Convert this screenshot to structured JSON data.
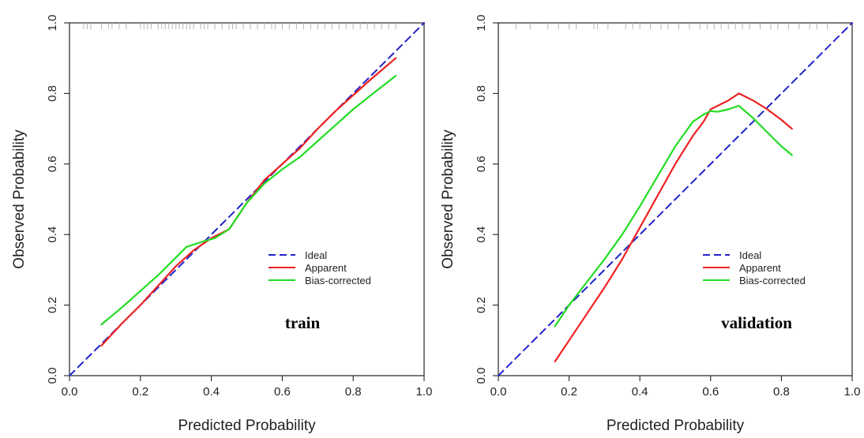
{
  "chart_data": [
    {
      "type": "line",
      "title": "",
      "xlabel": "Predicted Probability",
      "ylabel": "Observed  Probability",
      "xlim": [
        0,
        1
      ],
      "ylim": [
        0,
        1
      ],
      "xticks": [
        "0.0",
        "0.2",
        "0.4",
        "0.6",
        "0.8",
        "1.0"
      ],
      "yticks": [
        "0.0",
        "0.2",
        "0.4",
        "0.6",
        "0.8",
        "1.0"
      ],
      "annotation": "train",
      "legend_position": "bottom-right",
      "grid": false,
      "series": [
        {
          "name": "Ideal",
          "style": "dashed",
          "color": "#2222cc",
          "x": [
            0,
            1
          ],
          "y": [
            0,
            1
          ]
        },
        {
          "name": "Apparent",
          "style": "solid",
          "color": "#ee2222",
          "x": [
            0.09,
            0.15,
            0.2,
            0.25,
            0.3,
            0.35,
            0.4,
            0.45,
            0.5,
            0.55,
            0.6,
            0.65,
            0.7,
            0.75,
            0.8,
            0.85,
            0.92
          ],
          "y": [
            0.085,
            0.15,
            0.2,
            0.255,
            0.31,
            0.355,
            0.39,
            0.415,
            0.49,
            0.555,
            0.6,
            0.645,
            0.7,
            0.75,
            0.795,
            0.84,
            0.9
          ]
        },
        {
          "name": "Bias-corrected",
          "style": "solid",
          "color": "#22dd22",
          "x": [
            0.09,
            0.15,
            0.2,
            0.25,
            0.3,
            0.33,
            0.37,
            0.41,
            0.45,
            0.5,
            0.55,
            0.6,
            0.65,
            0.7,
            0.75,
            0.8,
            0.85,
            0.92
          ],
          "y": [
            0.145,
            0.195,
            0.24,
            0.285,
            0.335,
            0.365,
            0.378,
            0.39,
            0.415,
            0.49,
            0.545,
            0.585,
            0.62,
            0.665,
            0.71,
            0.755,
            0.795,
            0.85
          ]
        }
      ],
      "rug_x": [
        0.04,
        0.05,
        0.06,
        0.09,
        0.11,
        0.12,
        0.14,
        0.16,
        0.2,
        0.21,
        0.22,
        0.23,
        0.25,
        0.26,
        0.27,
        0.28,
        0.29,
        0.3,
        0.31,
        0.32,
        0.33,
        0.34,
        0.35,
        0.37,
        0.38,
        0.39,
        0.41,
        0.43,
        0.45,
        0.46,
        0.47,
        0.49,
        0.51,
        0.53,
        0.55,
        0.57,
        0.58,
        0.6,
        0.62,
        0.64,
        0.66,
        0.68,
        0.7,
        0.72,
        0.74,
        0.76,
        0.78,
        0.8,
        0.82,
        0.84,
        0.86,
        0.88,
        0.9,
        0.92
      ]
    },
    {
      "type": "line",
      "title": "",
      "xlabel": "Predicted Probability",
      "ylabel": "Observed  Probability",
      "xlim": [
        0,
        1
      ],
      "ylim": [
        0,
        1
      ],
      "xticks": [
        "0.0",
        "0.2",
        "0.4",
        "0.6",
        "0.8",
        "1.0"
      ],
      "yticks": [
        "0.0",
        "0.2",
        "0.4",
        "0.6",
        "0.8",
        "1.0"
      ],
      "annotation": "validation",
      "legend_position": "bottom-right",
      "grid": false,
      "series": [
        {
          "name": "Ideal",
          "style": "dashed",
          "color": "#2222cc",
          "x": [
            0,
            1
          ],
          "y": [
            0,
            1
          ]
        },
        {
          "name": "Apparent",
          "style": "solid",
          "color": "#ee2222",
          "x": [
            0.16,
            0.2,
            0.25,
            0.3,
            0.35,
            0.4,
            0.45,
            0.5,
            0.55,
            0.58,
            0.6,
            0.62,
            0.65,
            0.68,
            0.72,
            0.76,
            0.8,
            0.83
          ],
          "y": [
            0.04,
            0.1,
            0.175,
            0.25,
            0.33,
            0.42,
            0.51,
            0.6,
            0.68,
            0.72,
            0.755,
            0.765,
            0.78,
            0.8,
            0.78,
            0.755,
            0.725,
            0.7
          ]
        },
        {
          "name": "Bias-corrected",
          "style": "solid",
          "color": "#22dd22",
          "x": [
            0.16,
            0.2,
            0.25,
            0.3,
            0.35,
            0.4,
            0.45,
            0.5,
            0.55,
            0.58,
            0.6,
            0.62,
            0.65,
            0.68,
            0.72,
            0.76,
            0.8,
            0.83
          ],
          "y": [
            0.14,
            0.2,
            0.265,
            0.33,
            0.4,
            0.48,
            0.565,
            0.65,
            0.72,
            0.74,
            0.75,
            0.748,
            0.755,
            0.765,
            0.73,
            0.69,
            0.65,
            0.625
          ]
        }
      ],
      "rug_x": [
        0.05,
        0.09,
        0.14,
        0.17,
        0.2,
        0.22,
        0.27,
        0.28,
        0.31,
        0.36,
        0.38,
        0.4,
        0.43,
        0.46,
        0.48,
        0.51,
        0.54,
        0.57,
        0.59,
        0.61,
        0.63,
        0.65,
        0.67,
        0.69,
        0.71,
        0.74,
        0.77,
        0.79,
        0.82,
        0.85,
        0.88,
        0.9,
        0.93
      ]
    }
  ]
}
